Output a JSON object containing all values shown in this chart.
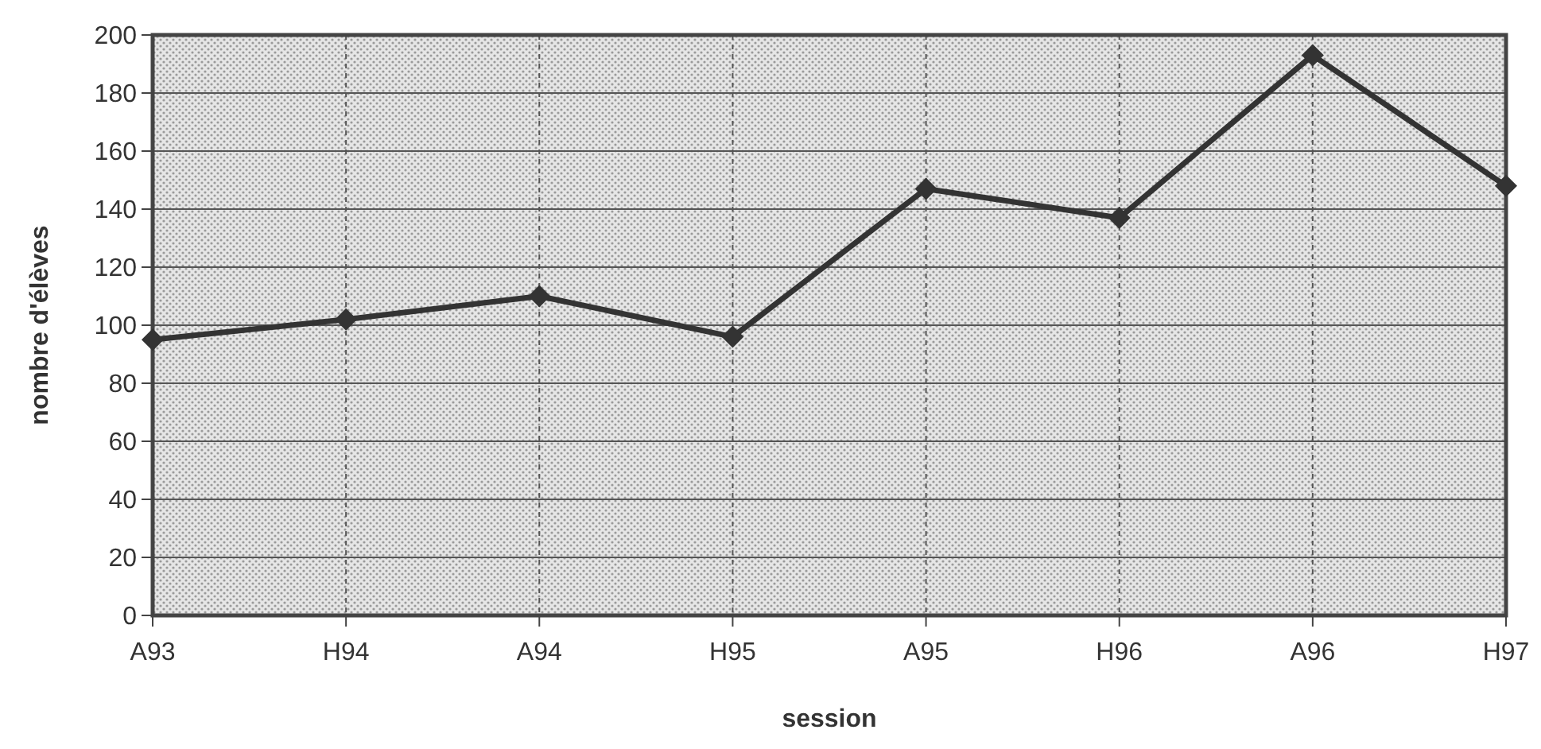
{
  "chart_data": {
    "type": "line",
    "xlabel": "session",
    "ylabel": "nombre d'élèves",
    "categories": [
      "A93",
      "H94",
      "A94",
      "H95",
      "A95",
      "H96",
      "A96",
      "H97"
    ],
    "series": [
      {
        "color": "#333333",
        "values": [
          95,
          102,
          110,
          96,
          147,
          137,
          193,
          148
        ]
      }
    ],
    "ylim": [
      0,
      200
    ],
    "yticks": [
      0,
      20,
      40,
      60,
      80,
      100,
      120,
      140,
      160,
      180,
      200
    ],
    "grid": true,
    "marker": "diamond",
    "line_style": "solid"
  }
}
